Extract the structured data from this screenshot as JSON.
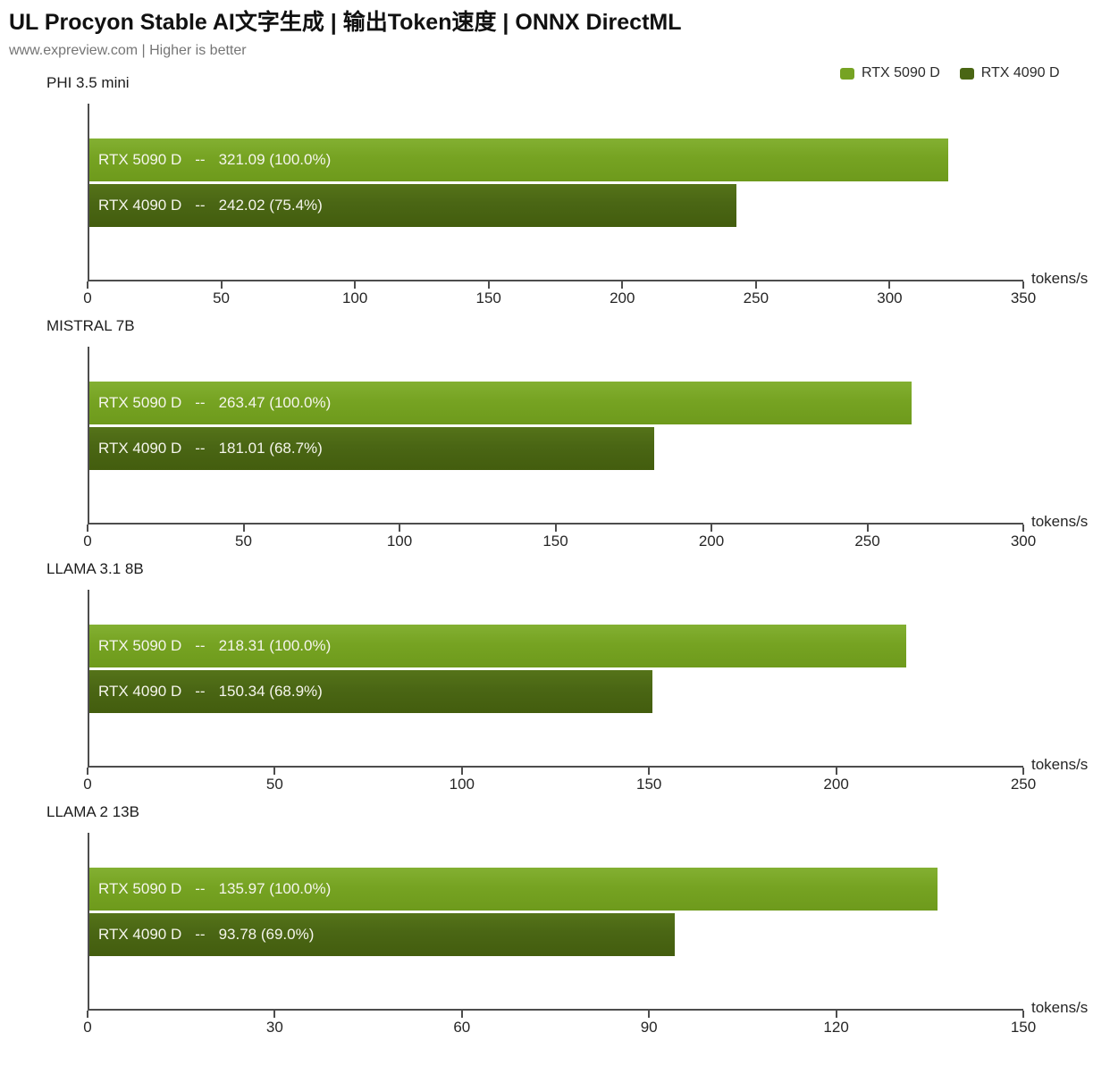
{
  "header": {
    "title": "UL Procyon Stable AI文字生成 | 输出Token速度 | ONNX DirectML",
    "subtitle": "www.expreview.com | Higher is better"
  },
  "legend": {
    "items": [
      {
        "label": "RTX 5090 D",
        "color": "#76A323"
      },
      {
        "label": "RTX 4090 D",
        "color": "#4A6614"
      }
    ]
  },
  "chart_data": {
    "type": "bar",
    "orientation": "horizontal",
    "higher_is_better": true,
    "unit_label": "tokens/s",
    "bar_label_separator": "--",
    "series": [
      "RTX 5090 D",
      "RTX 4090 D"
    ],
    "series_colors": {
      "RTX 5090 D": "#76A323",
      "RTX 4090 D": "#4A6614"
    },
    "groups": [
      {
        "model": "PHI 3.5 mini",
        "xlim": [
          0,
          350
        ],
        "ticks": [
          0,
          50,
          100,
          150,
          200,
          250,
          300,
          350
        ],
        "bars": [
          {
            "gpu": "RTX 5090 D",
            "value": 321.09,
            "percent": "100.0%"
          },
          {
            "gpu": "RTX 4090 D",
            "value": 242.02,
            "percent": "75.4%"
          }
        ]
      },
      {
        "model": "MISTRAL 7B",
        "xlim": [
          0,
          300
        ],
        "ticks": [
          0,
          50,
          100,
          150,
          200,
          250,
          300
        ],
        "bars": [
          {
            "gpu": "RTX 5090 D",
            "value": 263.47,
            "percent": "100.0%"
          },
          {
            "gpu": "RTX 4090 D",
            "value": 181.01,
            "percent": "68.7%"
          }
        ]
      },
      {
        "model": "LLAMA 3.1 8B",
        "xlim": [
          0,
          250
        ],
        "ticks": [
          0,
          50,
          100,
          150,
          200,
          250
        ],
        "bars": [
          {
            "gpu": "RTX 5090 D",
            "value": 218.31,
            "percent": "100.0%"
          },
          {
            "gpu": "RTX 4090 D",
            "value": 150.34,
            "percent": "68.9%"
          }
        ]
      },
      {
        "model": "LLAMA 2 13B",
        "xlim": [
          0,
          150
        ],
        "ticks": [
          0,
          30,
          60,
          90,
          120,
          150
        ],
        "bars": [
          {
            "gpu": "RTX 5090 D",
            "value": 135.97,
            "percent": "100.0%"
          },
          {
            "gpu": "RTX 4090 D",
            "value": 93.78,
            "percent": "69.0%"
          }
        ]
      }
    ]
  }
}
